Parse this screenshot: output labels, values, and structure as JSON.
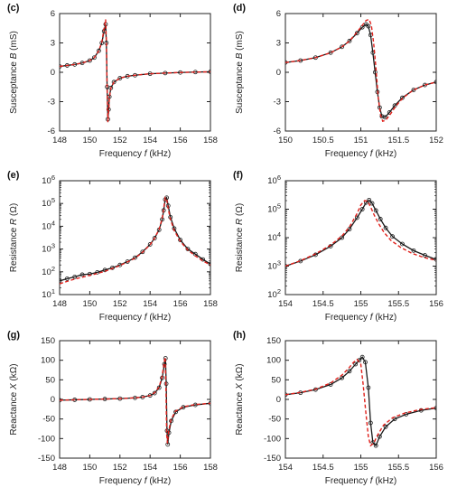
{
  "figure": {
    "colors": {
      "measured": "#1a1a1a",
      "model": "#e0201b",
      "axis": "#222222",
      "background": "#ffffff"
    },
    "series_styles": {
      "measured": "solid black line with circle markers",
      "model": "dashed red line"
    }
  },
  "chart_data": [
    {
      "panel": "(c)",
      "type": "line",
      "xlabel_base": "Frequency ",
      "xlabel_var": "f",
      "xlabel_unit": " (kHz)",
      "ylabel_base": "Susceptance ",
      "ylabel_var": "B",
      "ylabel_unit": " (mS)",
      "xlim": [
        148,
        158
      ],
      "ylim": [
        -6,
        6
      ],
      "xticks": [
        "148",
        "150",
        "152",
        "154",
        "156",
        "158"
      ],
      "yticks": [
        "-6",
        "-3",
        "0",
        "3",
        "6"
      ],
      "log_y": false,
      "grid": false,
      "series": [
        {
          "key": "measured",
          "x": [
            148,
            148.5,
            149,
            149.5,
            150,
            150.3,
            150.6,
            150.8,
            150.95,
            151.05,
            151.1,
            151.15,
            151.2,
            151.25,
            151.3,
            151.4,
            151.6,
            152,
            152.5,
            153,
            154,
            155,
            156,
            157,
            158
          ],
          "y": [
            0.6,
            0.7,
            0.8,
            0.95,
            1.2,
            1.5,
            2.2,
            3.0,
            4.2,
            4.9,
            3.0,
            -1.5,
            -4.8,
            -3.8,
            -2.5,
            -1.6,
            -1.0,
            -0.6,
            -0.4,
            -0.3,
            -0.15,
            -0.08,
            -0.02,
            0.02,
            0.05
          ]
        },
        {
          "key": "model",
          "x": [
            148,
            148.5,
            149,
            149.5,
            150,
            150.3,
            150.6,
            150.8,
            150.95,
            151.05,
            151.1,
            151.15,
            151.2,
            151.25,
            151.3,
            151.4,
            151.6,
            152,
            152.5,
            153,
            154,
            155,
            156,
            157,
            158
          ],
          "y": [
            0.6,
            0.7,
            0.8,
            0.95,
            1.2,
            1.5,
            2.2,
            3.1,
            4.5,
            5.4,
            3.2,
            -1.8,
            -5.1,
            -4.0,
            -2.6,
            -1.6,
            -1.0,
            -0.6,
            -0.4,
            -0.3,
            -0.15,
            -0.08,
            -0.02,
            0.02,
            0.05
          ]
        }
      ]
    },
    {
      "panel": "(d)",
      "type": "line",
      "xlabel_base": "Frequency ",
      "xlabel_var": "f",
      "xlabel_unit": " (kHz)",
      "ylabel_base": "Susceptance ",
      "ylabel_var": "B",
      "ylabel_unit": " (mS)",
      "xlim": [
        150,
        152
      ],
      "ylim": [
        -6,
        6
      ],
      "xticks": [
        "150",
        "150.5",
        "151",
        "151.5",
        "152"
      ],
      "yticks": [
        "-6",
        "-3",
        "0",
        "3",
        "6"
      ],
      "log_y": false,
      "grid": false,
      "series": [
        {
          "key": "measured",
          "x": [
            150,
            150.2,
            150.4,
            150.6,
            150.75,
            150.85,
            150.95,
            151.02,
            151.07,
            151.1,
            151.13,
            151.16,
            151.19,
            151.22,
            151.25,
            151.28,
            151.32,
            151.38,
            151.45,
            151.55,
            151.7,
            151.85,
            152
          ],
          "y": [
            1.0,
            1.2,
            1.5,
            2.0,
            2.6,
            3.2,
            4.0,
            4.6,
            4.9,
            4.7,
            3.8,
            2.0,
            0.0,
            -2.0,
            -3.6,
            -4.5,
            -4.6,
            -4.1,
            -3.4,
            -2.6,
            -1.8,
            -1.3,
            -1.0
          ]
        },
        {
          "key": "model",
          "x": [
            150,
            150.2,
            150.4,
            150.6,
            150.75,
            150.85,
            150.95,
            151.02,
            151.07,
            151.11,
            151.14,
            151.17,
            151.2,
            151.23,
            151.26,
            151.29,
            151.33,
            151.39,
            151.46,
            151.56,
            151.7,
            151.85,
            152
          ],
          "y": [
            1.0,
            1.2,
            1.5,
            2.0,
            2.6,
            3.2,
            4.1,
            4.8,
            5.3,
            5.4,
            4.8,
            3.0,
            0.5,
            -2.5,
            -4.3,
            -5.0,
            -4.9,
            -4.3,
            -3.5,
            -2.6,
            -1.8,
            -1.3,
            -1.0
          ]
        }
      ]
    },
    {
      "panel": "(e)",
      "type": "line",
      "xlabel_base": "Frequency ",
      "xlabel_var": "f",
      "xlabel_unit": " (kHz)",
      "ylabel_base": "Resistance ",
      "ylabel_var": "R",
      "ylabel_unit": " (Ω)",
      "xlim": [
        148,
        158
      ],
      "ylim": [
        10,
        1000000
      ],
      "xticks": [
        "148",
        "150",
        "152",
        "154",
        "156",
        "158"
      ],
      "yticks_exp": [
        "1",
        "2",
        "3",
        "4",
        "5",
        "6"
      ],
      "tick_base": "10",
      "log_y": true,
      "grid": false,
      "series": [
        {
          "key": "measured",
          "x": [
            148,
            148.5,
            149,
            149.5,
            150,
            150.5,
            151,
            151.5,
            152,
            152.5,
            153,
            153.5,
            154,
            154.3,
            154.6,
            154.8,
            154.9,
            155.0,
            155.1,
            155.2,
            155.35,
            155.6,
            156,
            156.5,
            157,
            157.5,
            158
          ],
          "y": [
            40,
            50,
            60,
            75,
            80,
            95,
            120,
            150,
            200,
            280,
            420,
            750,
            1600,
            3000,
            7000,
            20000,
            50000,
            150000,
            180000,
            80000,
            25000,
            8000,
            2500,
            1000,
            600,
            350,
            220
          ]
        },
        {
          "key": "model",
          "x": [
            148,
            148.5,
            149,
            149.5,
            150,
            150.5,
            151,
            151.5,
            152,
            152.5,
            153,
            153.5,
            154,
            154.3,
            154.6,
            154.8,
            154.9,
            155.0,
            155.1,
            155.2,
            155.35,
            155.6,
            156,
            156.5,
            157,
            157.5,
            158
          ],
          "y": [
            30,
            38,
            48,
            58,
            70,
            85,
            105,
            140,
            190,
            270,
            400,
            720,
            1550,
            3000,
            7500,
            22000,
            60000,
            180000,
            150000,
            60000,
            20000,
            6500,
            2200,
            900,
            500,
            300,
            200
          ]
        }
      ]
    },
    {
      "panel": "(f)",
      "type": "line",
      "xlabel_base": "Frequency ",
      "xlabel_var": "f",
      "xlabel_unit": " (kHz)",
      "ylabel_base": "Resistance ",
      "ylabel_var": "R",
      "ylabel_unit": " (Ω)",
      "xlim": [
        154,
        156
      ],
      "ylim": [
        100,
        1000000
      ],
      "xticks": [
        "154",
        "154.5",
        "155",
        "155.5",
        "156"
      ],
      "yticks_exp": [
        "2",
        "3",
        "4",
        "5",
        "6"
      ],
      "tick_base": "10",
      "log_y": true,
      "grid": false,
      "series": [
        {
          "key": "measured",
          "x": [
            154,
            154.2,
            154.4,
            154.6,
            154.75,
            154.85,
            154.95,
            155.02,
            155.07,
            155.11,
            155.15,
            155.2,
            155.26,
            155.33,
            155.42,
            155.55,
            155.7,
            155.85,
            156
          ],
          "y": [
            1000,
            1500,
            2500,
            5000,
            10000,
            20000,
            50000,
            100000,
            170000,
            210000,
            160000,
            90000,
            45000,
            22000,
            11000,
            6000,
            3500,
            2400,
            1700
          ]
        },
        {
          "key": "model",
          "x": [
            154,
            154.2,
            154.4,
            154.6,
            154.75,
            154.85,
            154.95,
            155.0,
            155.05,
            155.09,
            155.13,
            155.18,
            155.24,
            155.31,
            155.4,
            155.53,
            155.68,
            155.84,
            156
          ],
          "y": [
            1000,
            1550,
            2700,
            5500,
            11500,
            24000,
            70000,
            140000,
            200000,
            190000,
            120000,
            60000,
            30000,
            15000,
            8000,
            4500,
            2800,
            2000,
            1600
          ]
        }
      ]
    },
    {
      "panel": "(g)",
      "type": "line",
      "xlabel_base": "Frequency ",
      "xlabel_var": "f",
      "xlabel_unit": " (kHz)",
      "ylabel_base": "Reactance ",
      "ylabel_var": "X",
      "ylabel_unit": " (kΩ)",
      "xlim": [
        148,
        158
      ],
      "ylim": [
        -150,
        150
      ],
      "xticks": [
        "148",
        "150",
        "152",
        "154",
        "156",
        "158"
      ],
      "yticks": [
        "-150",
        "-100",
        "-50",
        "0",
        "50",
        "100",
        "150"
      ],
      "log_y": false,
      "grid": false,
      "series": [
        {
          "key": "measured",
          "x": [
            148,
            149,
            150,
            151,
            152,
            153,
            153.5,
            154,
            154.3,
            154.6,
            154.8,
            154.95,
            155.02,
            155.07,
            155.12,
            155.17,
            155.25,
            155.4,
            155.7,
            156.2,
            157,
            158
          ],
          "y": [
            -2,
            -1,
            0,
            1,
            2,
            4,
            6,
            10,
            16,
            30,
            55,
            90,
            105,
            40,
            -80,
            -115,
            -85,
            -55,
            -32,
            -20,
            -14,
            -10
          ]
        },
        {
          "key": "model",
          "x": [
            148,
            149,
            150,
            151,
            152,
            153,
            153.5,
            154,
            154.3,
            154.6,
            154.8,
            154.93,
            155.0,
            155.05,
            155.1,
            155.15,
            155.23,
            155.38,
            155.68,
            156.2,
            157,
            158
          ],
          "y": [
            -2,
            -1,
            0,
            1,
            2,
            4,
            6,
            10,
            17,
            32,
            60,
            95,
            108,
            30,
            -90,
            -112,
            -82,
            -52,
            -30,
            -19,
            -13,
            -10
          ]
        }
      ]
    },
    {
      "panel": "(h)",
      "type": "line",
      "xlabel_base": "Frequency ",
      "xlabel_var": "f",
      "xlabel_unit": " (kHz)",
      "ylabel_base": "Reactance ",
      "ylabel_var": "X",
      "ylabel_unit": " (kΩ)",
      "xlim": [
        154,
        156
      ],
      "ylim": [
        -150,
        150
      ],
      "xticks": [
        "154",
        "154.5",
        "155",
        "155.5",
        "156"
      ],
      "yticks": [
        "-150",
        "-100",
        "-50",
        "0",
        "50",
        "100",
        "150"
      ],
      "log_y": false,
      "grid": false,
      "series": [
        {
          "key": "measured",
          "x": [
            154,
            154.2,
            154.4,
            154.6,
            154.75,
            154.85,
            154.93,
            154.98,
            155.02,
            155.06,
            155.1,
            155.13,
            155.16,
            155.2,
            155.25,
            155.33,
            155.45,
            155.6,
            155.8,
            156
          ],
          "y": [
            12,
            17,
            25,
            38,
            55,
            72,
            90,
            100,
            108,
            95,
            30,
            -60,
            -110,
            -118,
            -95,
            -70,
            -50,
            -38,
            -28,
            -22
          ]
        },
        {
          "key": "model",
          "x": [
            154,
            154.2,
            154.4,
            154.6,
            154.75,
            154.85,
            154.9,
            154.95,
            155.0,
            155.03,
            155.07,
            155.1,
            155.13,
            155.17,
            155.22,
            155.3,
            155.42,
            155.58,
            155.78,
            156
          ],
          "y": [
            12,
            18,
            26,
            42,
            62,
            82,
            94,
            102,
            90,
            40,
            -40,
            -95,
            -118,
            -112,
            -92,
            -66,
            -47,
            -35,
            -26,
            -21
          ]
        }
      ]
    }
  ]
}
